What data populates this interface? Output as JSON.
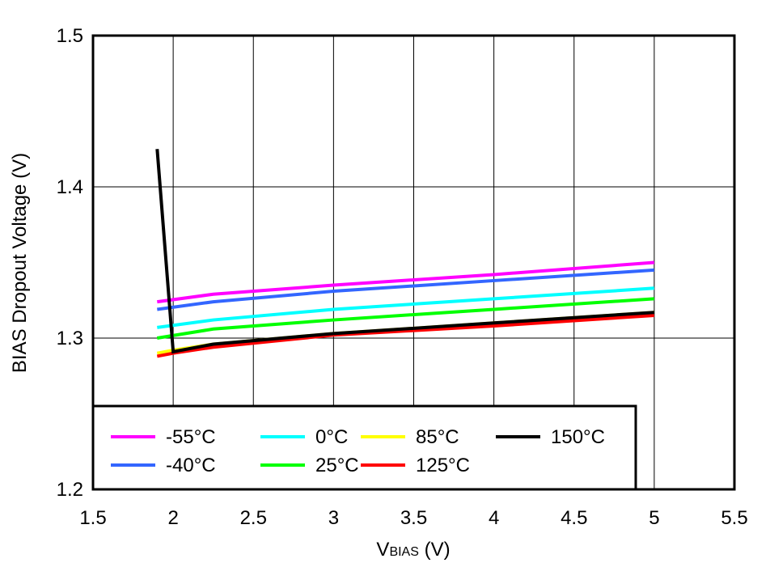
{
  "chart_data": {
    "type": "line",
    "title": "",
    "xlabel_main": "V",
    "xlabel_sub": "BIAS",
    "xlabel_unit": " (V)",
    "ylabel": "BIAS Dropout Voltage (V)",
    "xlim": [
      1.5,
      5.5
    ],
    "ylim": [
      1.2,
      1.5
    ],
    "xticks": [
      "1.5",
      "2",
      "2.5",
      "3",
      "3.5",
      "4",
      "4.5",
      "5",
      "5.5"
    ],
    "yticks": [
      "1.2",
      "1.3",
      "1.4",
      "1.5"
    ],
    "grid": true,
    "legend_placement": "bottom-left",
    "series": [
      {
        "name": "-55°C",
        "color": "#FF00FF",
        "x": [
          1.9,
          2.25,
          3,
          4,
          5
        ],
        "y": [
          1.324,
          1.329,
          1.335,
          1.342,
          1.35
        ]
      },
      {
        "name": "-40°C",
        "color": "#3366FF",
        "x": [
          1.9,
          2.25,
          3,
          4,
          5
        ],
        "y": [
          1.319,
          1.324,
          1.331,
          1.338,
          1.345
        ]
      },
      {
        "name": "0°C",
        "color": "#00FFFF",
        "x": [
          1.9,
          2.25,
          3,
          4,
          5
        ],
        "y": [
          1.307,
          1.312,
          1.319,
          1.326,
          1.333
        ]
      },
      {
        "name": "25°C",
        "color": "#00FF00",
        "x": [
          1.9,
          2.25,
          3,
          4,
          5
        ],
        "y": [
          1.3,
          1.306,
          1.312,
          1.319,
          1.326
        ]
      },
      {
        "name": "85°C",
        "color": "#FFFF00",
        "x": [
          1.9,
          2,
          2.25,
          3,
          4,
          5
        ],
        "y": [
          1.29,
          1.292,
          1.296,
          1.303,
          1.31,
          1.317
        ]
      },
      {
        "name": "125°C",
        "color": "#FF0000",
        "x": [
          1.9,
          2,
          2.25,
          3,
          4,
          5
        ],
        "y": [
          1.288,
          1.29,
          1.294,
          1.302,
          1.308,
          1.315
        ]
      },
      {
        "name": "150°C",
        "color": "#000000",
        "x": [
          1.9,
          2,
          2.25,
          3,
          4,
          5
        ],
        "y": [
          1.425,
          1.291,
          1.296,
          1.303,
          1.31,
          1.317
        ]
      }
    ]
  }
}
